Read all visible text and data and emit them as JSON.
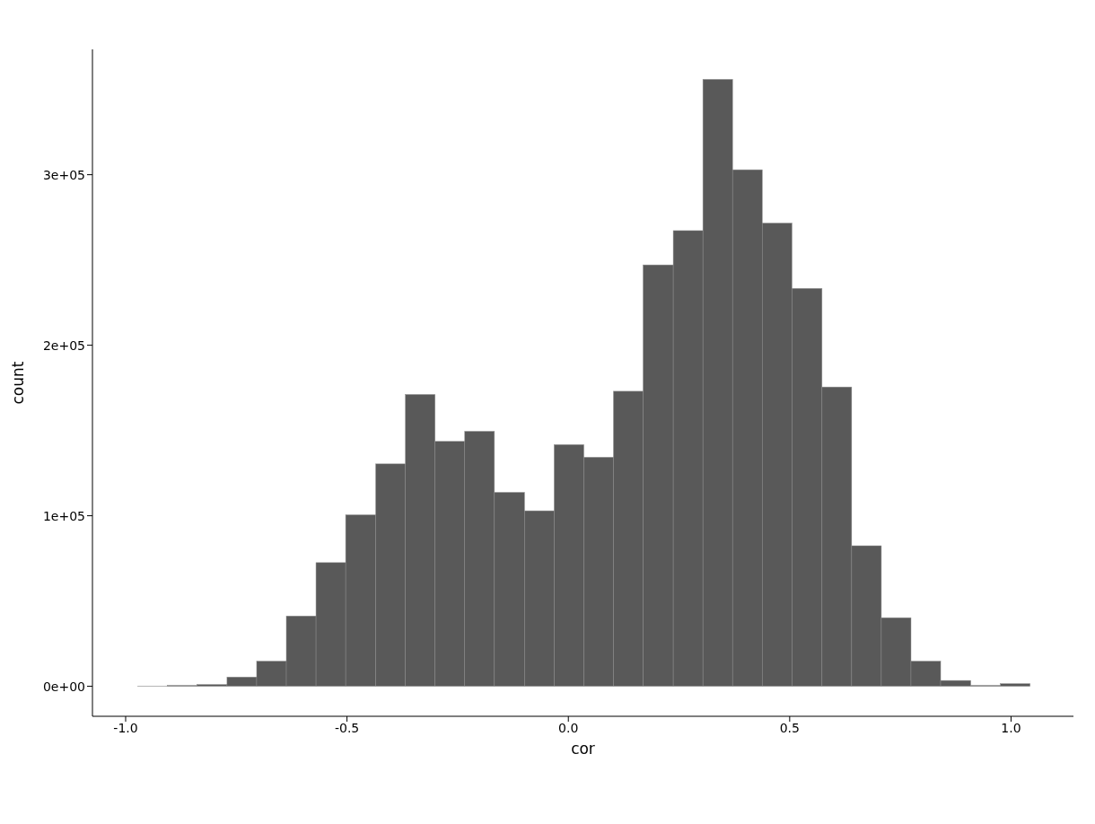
{
  "chart_data": {
    "type": "histogram",
    "xlabel": "cor",
    "ylabel": "count",
    "color": "#595959",
    "bins": [
      -0.974,
      -0.907,
      -0.84,
      -0.772,
      -0.705,
      -0.638,
      -0.571,
      -0.504,
      -0.436,
      -0.369,
      -0.302,
      -0.235,
      -0.168,
      -0.1,
      -0.033,
      0.034,
      0.101,
      0.168,
      0.236,
      0.303,
      0.37,
      0.437,
      0.504,
      0.572,
      0.639,
      0.706,
      0.773,
      0.84,
      0.908,
      0.975,
      1.042
    ],
    "values": [
      100,
      500,
      1000,
      5400,
      14700,
      41200,
      72500,
      100500,
      130400,
      171100,
      143600,
      149500,
      113700,
      102900,
      141700,
      134300,
      173000,
      247100,
      267200,
      355900,
      302900,
      271600,
      233300,
      175500,
      82400,
      40200,
      14700,
      3400,
      500,
      1500
    ],
    "xlim": [
      -1.075,
      1.141
    ],
    "ylim": [
      -17600,
      373500
    ],
    "xticks": [
      {
        "value": -1,
        "label": "-1.0"
      },
      {
        "value": -0.5,
        "label": "-0.5"
      },
      {
        "value": 0,
        "label": "0.0"
      },
      {
        "value": 0.5,
        "label": "0.5"
      },
      {
        "value": 1,
        "label": "1.0"
      }
    ],
    "yticks": [
      {
        "value": 0,
        "label": "0e+00"
      },
      {
        "value": 100000,
        "label": "1e+05"
      },
      {
        "value": 200000,
        "label": "2e+05"
      },
      {
        "value": 300000,
        "label": "3e+05"
      }
    ],
    "grid": false
  }
}
